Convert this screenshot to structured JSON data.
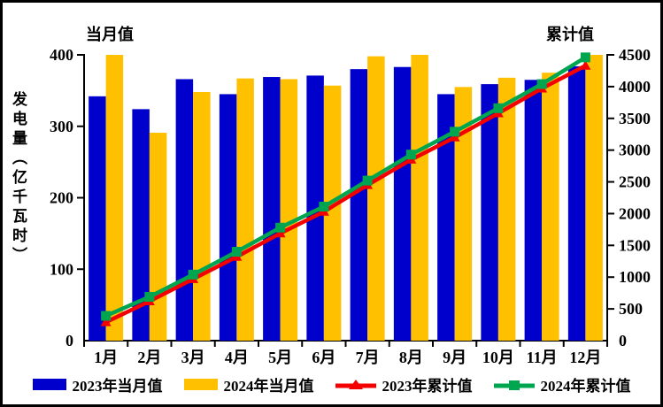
{
  "chart_data": {
    "type": "combo-bar-line",
    "title_left": "当月值",
    "title_right": "累计值",
    "ylabel": "发电量（亿千瓦时）",
    "categories": [
      "1月",
      "2月",
      "3月",
      "4月",
      "5月",
      "6月",
      "7月",
      "8月",
      "9月",
      "10月",
      "11月",
      "12月"
    ],
    "left_axis": {
      "title": "当月值",
      "min": 0,
      "max": 400,
      "ticks": [
        0,
        100,
        200,
        300,
        400
      ]
    },
    "right_axis": {
      "title": "累计值",
      "min": 0,
      "max": 4500,
      "ticks": [
        0,
        500,
        1000,
        1500,
        2000,
        2500,
        3000,
        3500,
        4000,
        4500
      ]
    },
    "series": [
      {
        "name": "2023年当月值",
        "type": "bar",
        "axis": "left",
        "color": "#0000CC",
        "values": [
          342,
          324,
          366,
          345,
          369,
          371,
          380,
          383,
          345,
          359,
          365,
          384
        ]
      },
      {
        "name": "2024年当月值",
        "type": "bar",
        "axis": "left",
        "color": "#FFC000",
        "values": [
          400,
          291,
          348,
          367,
          366,
          357,
          398,
          400,
          355,
          368,
          375,
          400
        ]
      },
      {
        "name": "2023年累计值",
        "type": "line",
        "axis": "right",
        "color": "#F40000",
        "marker": "triangle",
        "values": [
          290,
          620,
          970,
          1320,
          1690,
          2030,
          2450,
          2850,
          3200,
          3580,
          3970,
          4330
        ]
      },
      {
        "name": "2024年累计值",
        "type": "line",
        "axis": "right",
        "color": "#00A550",
        "marker": "square",
        "values": [
          390,
          690,
          1040,
          1400,
          1780,
          2110,
          2520,
          2930,
          3290,
          3660,
          4040,
          4460
        ]
      }
    ],
    "legend_position": "bottom",
    "grid": false,
    "background": "#FFFFFF",
    "text_color": "#000000"
  }
}
